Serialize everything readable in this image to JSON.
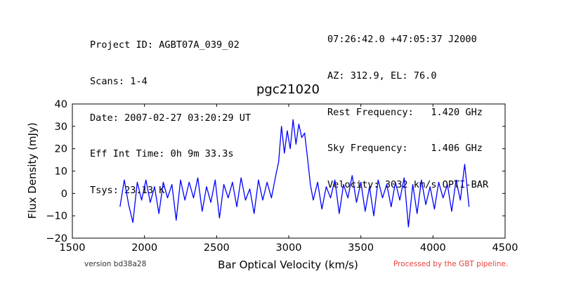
{
  "header": {
    "left_lines": [
      "Project ID: AGBT07A_039_02",
      "Scans: 1-4",
      "Date: 2007-02-27 03:20:29 UT",
      "Eff Int Time: 0h 9m 33.3s",
      "Tsys: 23.13 K"
    ],
    "right_lines": [
      "07:26:42.0 +47:05:37 J2000",
      "AZ: 312.9, EL: 76.0",
      "Rest Frequency:   1.420 GHz",
      "Sky Frequency:    1.406 GHz",
      "Velocity: 3032 km/s OPTI-BAR"
    ]
  },
  "footer": {
    "version": "version bd38a28",
    "processed": "Processed by the GBT pipeline.",
    "processed_color": "#e8413c"
  },
  "chart_data": {
    "type": "line",
    "title": "pgc21020",
    "xlabel": "Bar Optical Velocity (km/s)",
    "ylabel": "Flux Density (mJy)",
    "xlim": [
      1500,
      4500
    ],
    "ylim": [
      -20,
      40
    ],
    "xticks": [
      1500,
      2000,
      2500,
      3000,
      3500,
      4000,
      4500
    ],
    "yticks": [
      -20,
      -10,
      0,
      10,
      20,
      30,
      40
    ],
    "grid": false,
    "line_color": "#0000ff",
    "series": [
      {
        "x": [
          1830,
          1860,
          1890,
          1920,
          1950,
          1980,
          2010,
          2040,
          2070,
          2100,
          2130,
          2160,
          2190,
          2220,
          2250,
          2280,
          2310,
          2340,
          2370,
          2400,
          2430,
          2460,
          2490,
          2520,
          2550,
          2580,
          2610,
          2640,
          2670,
          2700,
          2730,
          2760,
          2790,
          2820,
          2850,
          2880,
          2910,
          2930,
          2950,
          2970,
          2990,
          3010,
          3030,
          3050,
          3070,
          3090,
          3110,
          3130,
          3150,
          3170,
          3200,
          3230,
          3260,
          3290,
          3320,
          3350,
          3380,
          3410,
          3440,
          3470,
          3500,
          3530,
          3560,
          3590,
          3620,
          3650,
          3680,
          3710,
          3740,
          3770,
          3800,
          3830,
          3860,
          3890,
          3920,
          3950,
          3980,
          4010,
          4040,
          4070,
          4100,
          4130,
          4160,
          4190,
          4220,
          4250
        ],
        "y": [
          -6,
          6,
          -5,
          -13,
          5,
          -3,
          6,
          -4,
          3,
          -9,
          5,
          -2,
          4,
          -12,
          6,
          -3,
          5,
          -2,
          7,
          -8,
          3,
          -4,
          6,
          -11,
          4,
          -2,
          5,
          -6,
          7,
          -3,
          2,
          -9,
          6,
          -3,
          5,
          -2,
          8,
          14,
          30,
          18,
          28,
          20,
          33,
          22,
          31,
          25,
          27,
          16,
          4,
          -3,
          5,
          -7,
          3,
          -2,
          6,
          -9,
          4,
          -2,
          8,
          -4,
          5,
          -8,
          3,
          -10,
          6,
          -2,
          4,
          -6,
          5,
          -3,
          7,
          -15,
          4,
          -9,
          6,
          -5,
          3,
          -7,
          5,
          -2,
          4,
          -8,
          6,
          -3,
          13,
          -6
        ]
      }
    ]
  }
}
